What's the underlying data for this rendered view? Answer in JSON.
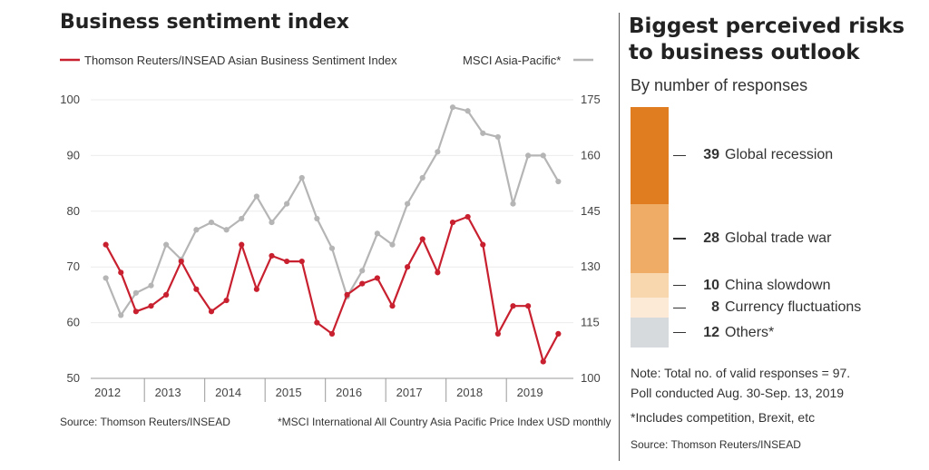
{
  "left_panel": {
    "title": "Business sentiment index",
    "source": "Source: Thomson Reuters/INSEAD",
    "footnote": "*MSCI International All Country Asia Pacific Price Index USD monthly"
  },
  "right_panel": {
    "title_line1": "Biggest perceived risks",
    "title_line2": "to business outlook",
    "subtitle": "By number of responses",
    "note_line1": "Note: Total no. of valid responses = 97.",
    "note_line2": "Poll conducted Aug. 30-Sep. 13, 2019",
    "footnote": "*Includes competition, Brexit, etc",
    "source": "Source: Thomson Reuters/INSEAD"
  },
  "chart_data": [
    {
      "type": "line",
      "title": "Business sentiment index",
      "x_tick_labels": [
        "2012",
        "2013",
        "2014",
        "2015",
        "2016",
        "2017",
        "2018",
        "2019"
      ],
      "y_left": {
        "ylim": [
          50,
          100
        ],
        "ticks": [
          "100",
          "90",
          "80",
          "70",
          "60",
          "50"
        ]
      },
      "y_right": {
        "ylim": [
          100,
          175
        ],
        "ticks": [
          "175",
          "160",
          "145",
          "130",
          "115",
          "100"
        ]
      },
      "grid": true,
      "legend_placement": "top",
      "series": [
        {
          "name": "Thomson Reuters/INSEAD Asian Business Sentiment Index",
          "axis": "left",
          "color": "#c8202f",
          "x": [
            2012.0,
            2012.25,
            2012.5,
            2012.75,
            2013.0,
            2013.25,
            2013.5,
            2013.75,
            2014.0,
            2014.25,
            2014.5,
            2014.75,
            2015.0,
            2015.25,
            2015.5,
            2015.75,
            2016.0,
            2016.25,
            2016.5,
            2016.75,
            2017.0,
            2017.25,
            2017.5,
            2017.75,
            2018.0,
            2018.25,
            2018.5,
            2018.75,
            2019.0,
            2019.25,
            2019.5
          ],
          "values": [
            74,
            69,
            62,
            63,
            65,
            71,
            66,
            62,
            64,
            74,
            66,
            72,
            71,
            71,
            60,
            58,
            65,
            67,
            68,
            63,
            70,
            75,
            69,
            78,
            79,
            74,
            58,
            63,
            63,
            53,
            58
          ]
        },
        {
          "name": "MSCI Asia-Pacific*",
          "axis": "right",
          "color": "#b5b5b5",
          "x": [
            2012.0,
            2012.25,
            2012.5,
            2012.75,
            2013.0,
            2013.25,
            2013.5,
            2013.75,
            2014.0,
            2014.25,
            2014.5,
            2014.75,
            2015.0,
            2015.25,
            2015.5,
            2015.75,
            2016.0,
            2016.25,
            2016.5,
            2016.75,
            2017.0,
            2017.25,
            2017.5,
            2017.75,
            2018.0,
            2018.25,
            2018.5,
            2018.75,
            2019.0,
            2019.25,
            2019.5
          ],
          "values": [
            127,
            117,
            123,
            125,
            136,
            132,
            140,
            142,
            140,
            143,
            149,
            142,
            147,
            154,
            143,
            135,
            122,
            129,
            139,
            136,
            147,
            154,
            161,
            173,
            172,
            166,
            165,
            147,
            160,
            160,
            153
          ]
        }
      ]
    },
    {
      "type": "bar",
      "title": "Biggest perceived risks to business outlook",
      "subtitle": "By number of responses",
      "stacked": true,
      "categories": [
        "Global recession",
        "Global trade war",
        "China slowdown",
        "Currency fluctuations",
        "Others*"
      ],
      "values": [
        39,
        28,
        10,
        8,
        12
      ],
      "colors": [
        "#e07d20",
        "#eeac67",
        "#f9d7ae",
        "#fce9d6",
        "#d7dadd"
      ]
    }
  ]
}
